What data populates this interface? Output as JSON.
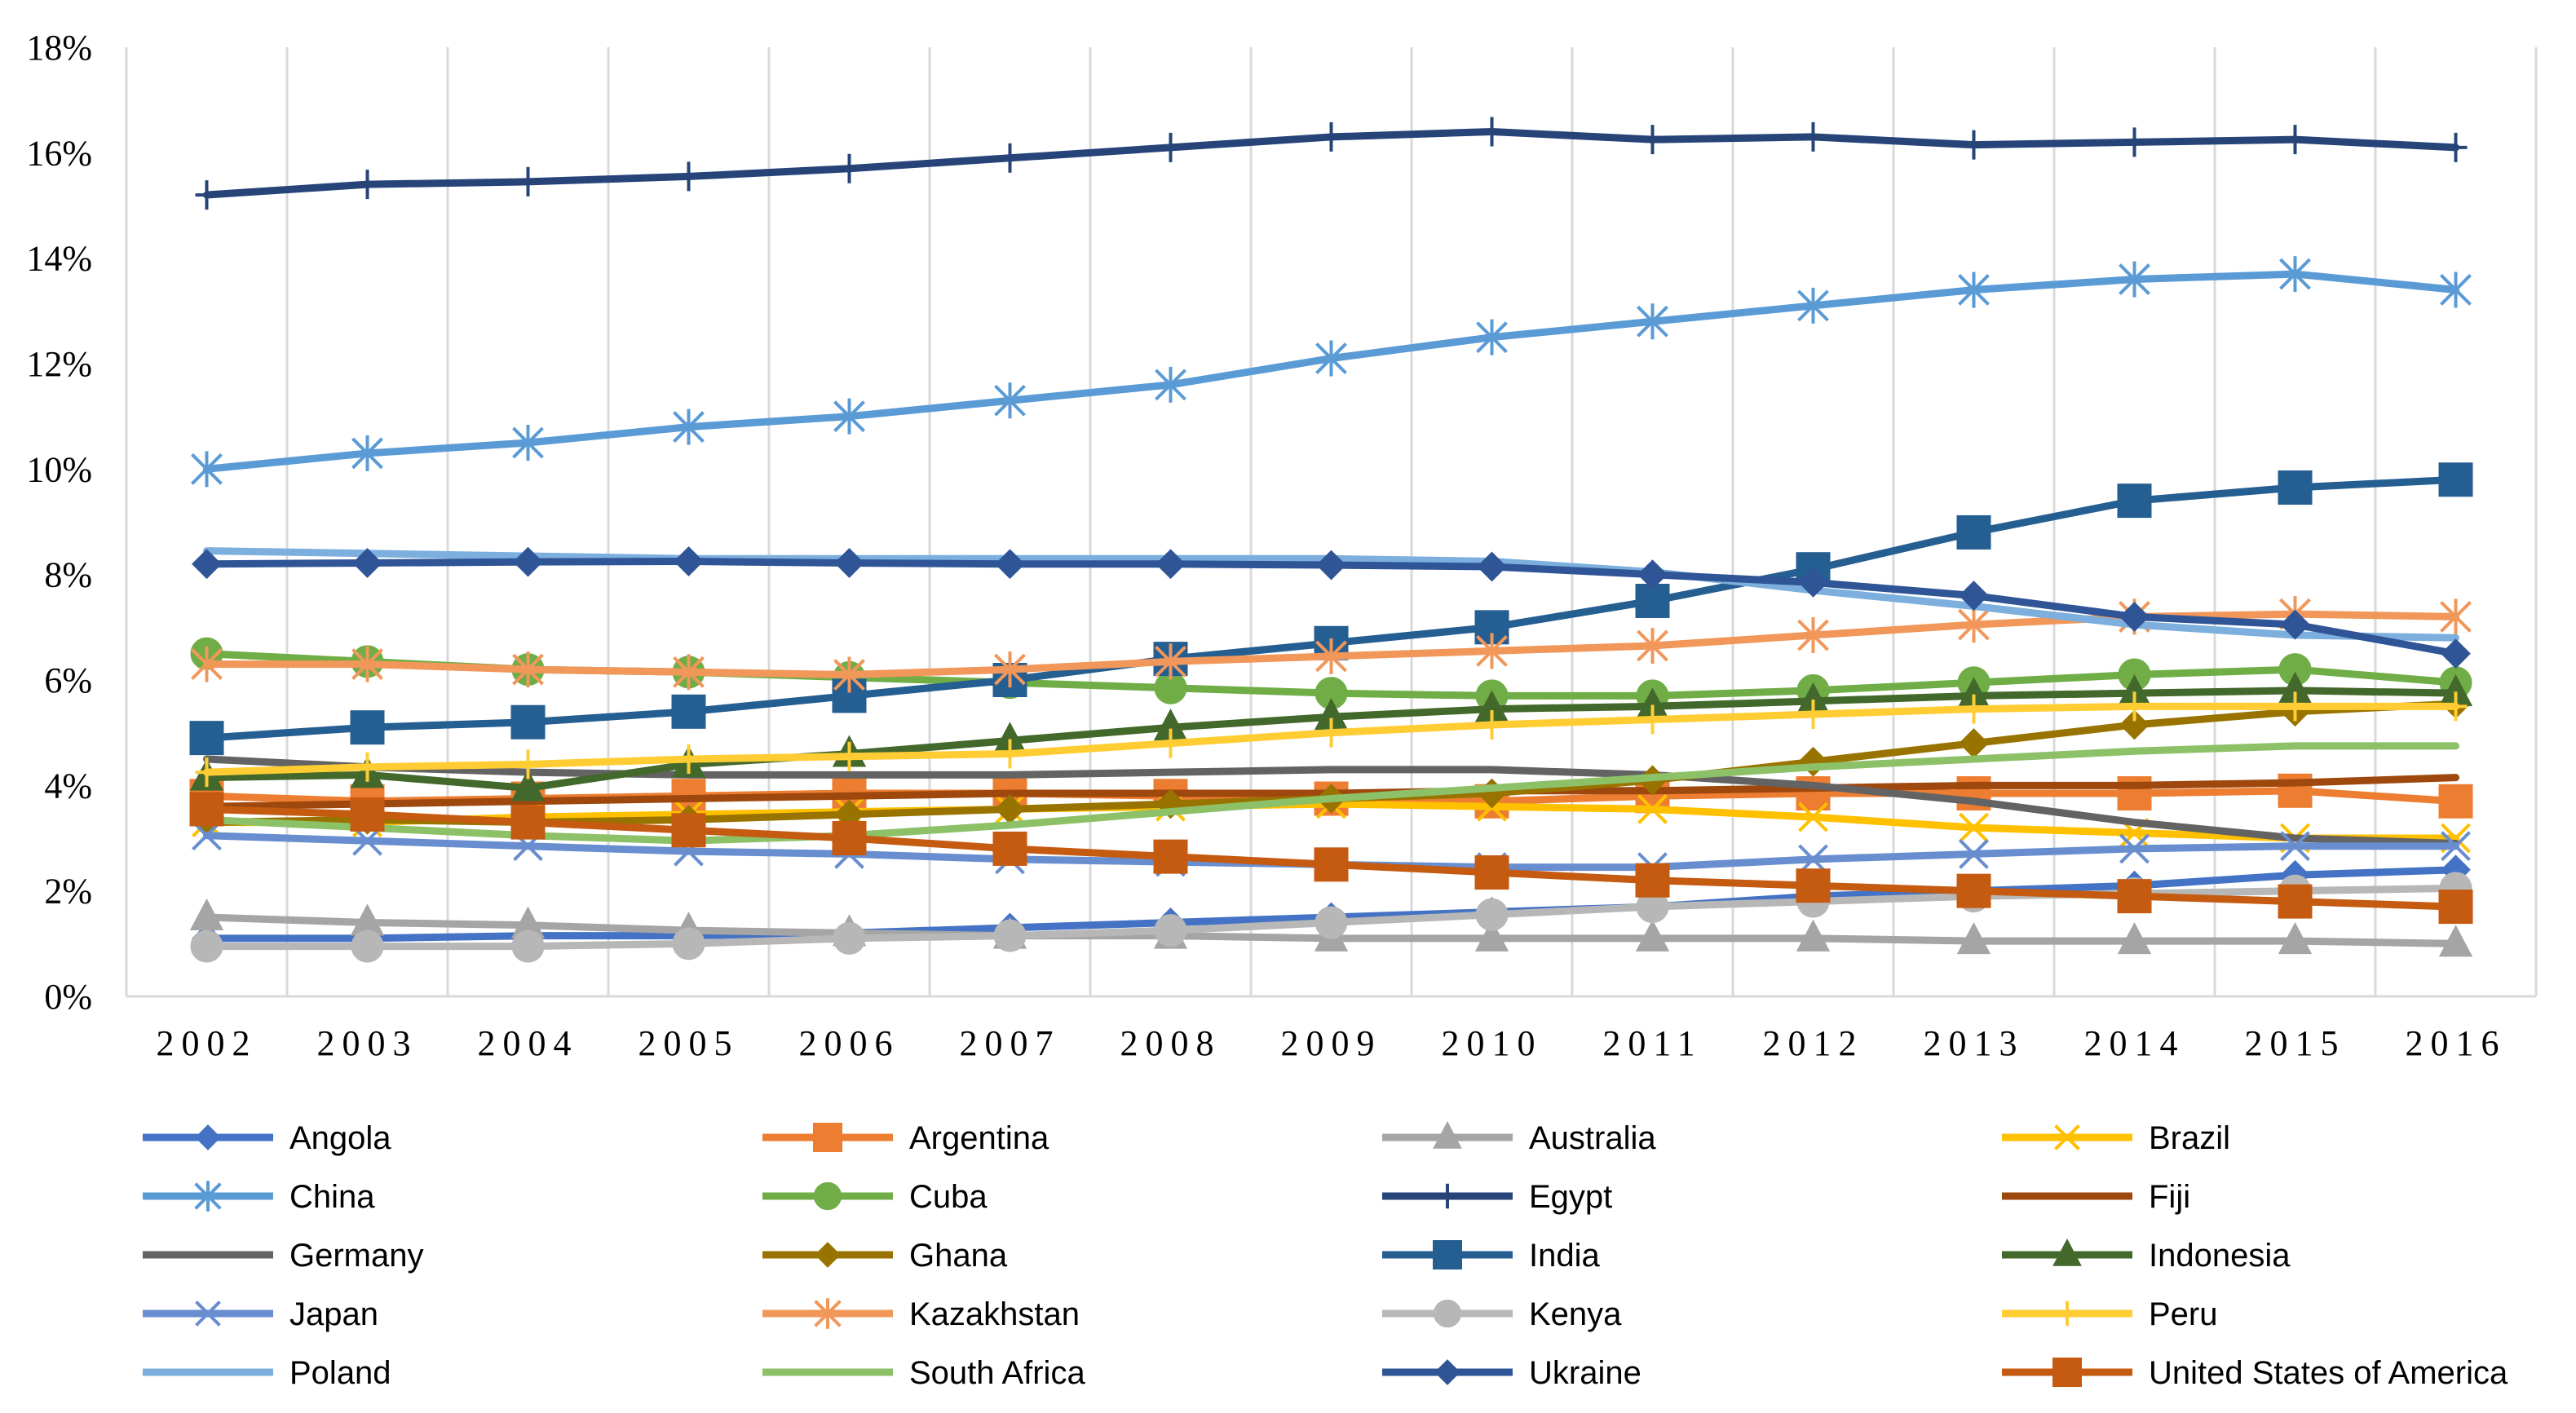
{
  "chart_data": {
    "type": "line",
    "title": "",
    "xlabel": "",
    "ylabel": "",
    "x": [
      "2002",
      "2003",
      "2004",
      "2005",
      "2006",
      "2007",
      "2008",
      "2009",
      "2010",
      "2011",
      "2012",
      "2013",
      "2014",
      "2015",
      "2016"
    ],
    "ylim": [
      0,
      18
    ],
    "y_ticks": [
      0,
      2,
      4,
      6,
      8,
      10,
      12,
      14,
      16,
      18
    ],
    "y_tick_labels": [
      "0%",
      "2%",
      "4%",
      "6%",
      "8%",
      "10%",
      "12%",
      "14%",
      "16%",
      "18%"
    ],
    "grid": "vertical gridlines",
    "legend_position": "bottom",
    "series": [
      {
        "name": "Angola",
        "color": "#4472C4",
        "marker": "diamond",
        "values": [
          1.1,
          1.1,
          1.15,
          1.15,
          1.2,
          1.3,
          1.4,
          1.5,
          1.6,
          1.7,
          1.9,
          2.0,
          2.1,
          2.3,
          2.4
        ]
      },
      {
        "name": "Argentina",
        "color": "#ED7D31",
        "marker": "square",
        "values": [
          3.8,
          3.7,
          3.75,
          3.8,
          3.85,
          3.85,
          3.8,
          3.75,
          3.7,
          3.8,
          3.85,
          3.85,
          3.85,
          3.9,
          3.7
        ]
      },
      {
        "name": "Australia",
        "color": "#A5A5A5",
        "marker": "triangle",
        "values": [
          1.5,
          1.4,
          1.35,
          1.25,
          1.2,
          1.15,
          1.15,
          1.1,
          1.1,
          1.1,
          1.1,
          1.05,
          1.05,
          1.05,
          1.0
        ]
      },
      {
        "name": "Brazil",
        "color": "#FFC000",
        "marker": "x",
        "values": [
          3.3,
          3.3,
          3.4,
          3.45,
          3.5,
          3.55,
          3.6,
          3.65,
          3.6,
          3.55,
          3.4,
          3.2,
          3.1,
          3.0,
          3.0
        ]
      },
      {
        "name": "China",
        "color": "#5B9BD5",
        "marker": "asterisk",
        "values": [
          10.0,
          10.3,
          10.5,
          10.8,
          11.0,
          11.3,
          11.6,
          12.1,
          12.5,
          12.8,
          13.1,
          13.4,
          13.6,
          13.7,
          13.4
        ]
      },
      {
        "name": "Cuba",
        "color": "#70AD47",
        "marker": "circle",
        "values": [
          6.5,
          6.35,
          6.2,
          6.15,
          6.05,
          5.95,
          5.85,
          5.75,
          5.7,
          5.7,
          5.8,
          5.95,
          6.1,
          6.2,
          5.95
        ]
      },
      {
        "name": "Egypt",
        "color": "#264478",
        "marker": "plus",
        "values": [
          15.2,
          15.4,
          15.45,
          15.55,
          15.7,
          15.9,
          16.1,
          16.3,
          16.4,
          16.25,
          16.3,
          16.15,
          16.2,
          16.25,
          16.1
        ]
      },
      {
        "name": "Fiji",
        "color": "#9E480E",
        "marker": "line",
        "values": [
          3.6,
          3.65,
          3.7,
          3.75,
          3.8,
          3.85,
          3.85,
          3.85,
          3.9,
          3.9,
          3.95,
          4.0,
          4.0,
          4.05,
          4.15
        ]
      },
      {
        "name": "Germany",
        "color": "#636363",
        "marker": "line",
        "values": [
          4.5,
          4.35,
          4.25,
          4.2,
          4.2,
          4.2,
          4.25,
          4.3,
          4.3,
          4.2,
          4.0,
          3.7,
          3.3,
          3.0,
          2.9
        ]
      },
      {
        "name": "Ghana",
        "color": "#997300",
        "marker": "diamond",
        "values": [
          3.3,
          3.35,
          3.3,
          3.35,
          3.45,
          3.55,
          3.65,
          3.75,
          3.85,
          4.1,
          4.45,
          4.8,
          5.15,
          5.4,
          5.55
        ]
      },
      {
        "name": "India",
        "color": "#255E91",
        "marker": "square",
        "values": [
          4.9,
          5.1,
          5.2,
          5.4,
          5.7,
          6.0,
          6.4,
          6.7,
          7.0,
          7.5,
          8.1,
          8.8,
          9.4,
          9.65,
          9.8
        ]
      },
      {
        "name": "Indonesia",
        "color": "#43682B",
        "marker": "triangle",
        "values": [
          4.15,
          4.2,
          3.95,
          4.4,
          4.6,
          4.85,
          5.1,
          5.3,
          5.45,
          5.5,
          5.6,
          5.7,
          5.75,
          5.8,
          5.75
        ]
      },
      {
        "name": "Japan",
        "color": "#698ED0",
        "marker": "x",
        "values": [
          3.05,
          2.95,
          2.85,
          2.75,
          2.7,
          2.6,
          2.55,
          2.5,
          2.45,
          2.45,
          2.6,
          2.7,
          2.8,
          2.85,
          2.85
        ]
      },
      {
        "name": "Kazakhstan",
        "color": "#F1975A",
        "marker": "asterisk",
        "values": [
          6.3,
          6.3,
          6.2,
          6.15,
          6.1,
          6.2,
          6.35,
          6.45,
          6.55,
          6.65,
          6.85,
          7.05,
          7.2,
          7.25,
          7.2
        ]
      },
      {
        "name": "Kenya",
        "color": "#B7B7B7",
        "marker": "circle",
        "values": [
          0.95,
          0.95,
          0.95,
          1.0,
          1.1,
          1.15,
          1.25,
          1.4,
          1.55,
          1.7,
          1.8,
          1.9,
          1.95,
          2.0,
          2.05
        ]
      },
      {
        "name": "Peru",
        "color": "#FFCD33",
        "marker": "plus",
        "values": [
          4.25,
          4.35,
          4.4,
          4.5,
          4.55,
          4.6,
          4.8,
          5.0,
          5.15,
          5.25,
          5.35,
          5.45,
          5.5,
          5.5,
          5.5
        ]
      },
      {
        "name": "Poland",
        "color": "#7CAFDD",
        "marker": "line",
        "values": [
          8.45,
          8.4,
          8.35,
          8.3,
          8.3,
          8.3,
          8.3,
          8.3,
          8.25,
          8.05,
          7.7,
          7.4,
          7.05,
          6.85,
          6.8
        ]
      },
      {
        "name": "South Africa",
        "color": "#8CC168",
        "marker": "line",
        "values": [
          3.35,
          3.2,
          3.05,
          2.95,
          3.05,
          3.25,
          3.5,
          3.75,
          3.95,
          4.15,
          4.35,
          4.5,
          4.65,
          4.75,
          4.75
        ]
      },
      {
        "name": "Ukraine",
        "color": "#2F5597",
        "marker": "diamond",
        "values": [
          8.2,
          8.22,
          8.24,
          8.25,
          8.22,
          8.2,
          8.2,
          8.18,
          8.15,
          8.0,
          7.85,
          7.6,
          7.2,
          7.05,
          6.5
        ]
      },
      {
        "name": "United States of America",
        "color": "#C55A11",
        "marker": "square",
        "values": [
          3.55,
          3.45,
          3.3,
          3.15,
          3.0,
          2.8,
          2.65,
          2.5,
          2.35,
          2.2,
          2.1,
          2.0,
          1.9,
          1.8,
          1.7
        ]
      }
    ]
  }
}
